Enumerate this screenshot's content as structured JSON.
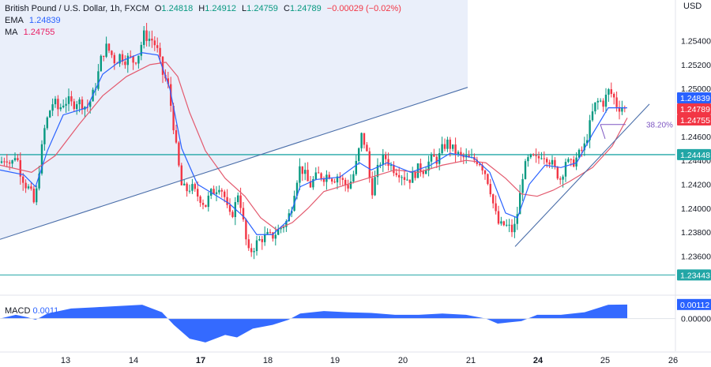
{
  "legend": {
    "symbol": "British Pound / U.S. Dollar, 1h, FXCM",
    "open_label": "O",
    "open": "1.24818",
    "high_label": "H",
    "high": "1.24912",
    "low_label": "L",
    "low": "1.24759",
    "close_label": "C",
    "close": "1.24789",
    "change": "−0.00029 (−0.02%)",
    "ema_label": "EMA",
    "ema_value": "1.24839",
    "ma_label": "MA",
    "ma_value": "1.24755"
  },
  "macd": {
    "label": "MACD",
    "value": "0.0011",
    "axis_current": "0.00112",
    "axis_zero": "0.00000"
  },
  "chart_data": {
    "type": "candlestick",
    "currency": "USD",
    "y_ticks": [
      1.254,
      1.252,
      1.25,
      1.248,
      1.246,
      1.244,
      1.242,
      1.24,
      1.238,
      1.236
    ],
    "y_tick_labels": [
      "1.25400",
      "1.25200",
      "1.25000",
      "1.24800",
      "1.24600",
      "1.24400",
      "1.24200",
      "1.24000",
      "1.23800",
      "1.23600"
    ],
    "ylim": [
      1.233,
      1.2574
    ],
    "x_day_labels": [
      "13",
      "14",
      "17",
      "18",
      "19",
      "20",
      "21",
      "24",
      "25",
      "26"
    ],
    "x_bold_labels": [
      "17",
      "24"
    ],
    "price_labels": [
      {
        "label": "1.24839",
        "value": 1.24839,
        "color": "#2962ff"
      },
      {
        "label": "1.24789",
        "value": 1.24789,
        "color": "#f23645"
      },
      {
        "label": "1.24755",
        "value": 1.24755,
        "color": "#f23645"
      },
      {
        "label": "1.24448",
        "value": 1.24448,
        "color": "#22a6a6"
      },
      {
        "label": "1.23443",
        "value": 1.23443,
        "color": "#22a6a6"
      }
    ],
    "horizontal_levels": [
      1.24448,
      1.23443
    ],
    "fib_label": "38.20%",
    "fib_level": 1.247,
    "path": [
      [
        0,
        1.2438
      ],
      [
        8,
        1.2443
      ],
      [
        14,
        1.2436
      ],
      [
        20,
        1.2446
      ],
      [
        26,
        1.243
      ],
      [
        32,
        1.242
      ],
      [
        38,
        1.2415
      ],
      [
        44,
        1.2402
      ],
      [
        50,
        1.2435
      ],
      [
        56,
        1.2465
      ],
      [
        62,
        1.248
      ],
      [
        68,
        1.249
      ],
      [
        74,
        1.2482
      ],
      [
        80,
        1.2488
      ],
      [
        86,
        1.249
      ],
      [
        92,
        1.2486
      ],
      [
        98,
        1.249
      ],
      [
        104,
        1.2487
      ],
      [
        110,
        1.2484
      ],
      [
        116,
        1.2492
      ],
      [
        122,
        1.2505
      ],
      [
        128,
        1.2525
      ],
      [
        134,
        1.2535
      ],
      [
        140,
        1.253
      ],
      [
        146,
        1.2522
      ],
      [
        152,
        1.2528
      ],
      [
        158,
        1.2524
      ],
      [
        164,
        1.2526
      ],
      [
        170,
        1.2522
      ],
      [
        176,
        1.253
      ],
      [
        182,
        1.2545
      ],
      [
        188,
        1.2542
      ],
      [
        194,
        1.254
      ],
      [
        200,
        1.253
      ],
      [
        206,
        1.2512
      ],
      [
        212,
        1.2505
      ],
      [
        218,
        1.2478
      ],
      [
        224,
        1.2445
      ],
      [
        230,
        1.2418
      ],
      [
        236,
        1.2415
      ],
      [
        242,
        1.2418
      ],
      [
        248,
        1.2412
      ],
      [
        254,
        1.2408
      ],
      [
        260,
        1.2402
      ],
      [
        266,
        1.2412
      ],
      [
        272,
        1.2415
      ],
      [
        278,
        1.242
      ],
      [
        284,
        1.241
      ],
      [
        290,
        1.2392
      ],
      [
        296,
        1.2398
      ],
      [
        302,
        1.2415
      ],
      [
        308,
        1.2388
      ],
      [
        314,
        1.2362
      ],
      [
        320,
        1.2366
      ],
      [
        326,
        1.2372
      ],
      [
        332,
        1.2375
      ],
      [
        338,
        1.2377
      ],
      [
        344,
        1.2376
      ],
      [
        350,
        1.238
      ],
      [
        356,
        1.2384
      ],
      [
        362,
        1.2388
      ],
      [
        368,
        1.2398
      ],
      [
        374,
        1.242
      ],
      [
        380,
        1.2435
      ],
      [
        386,
        1.2428
      ],
      [
        392,
        1.2418
      ],
      [
        398,
        1.2425
      ],
      [
        404,
        1.2428
      ],
      [
        410,
        1.2426
      ],
      [
        416,
        1.2429
      ],
      [
        422,
        1.2424
      ],
      [
        428,
        1.2428
      ],
      [
        434,
        1.2422
      ],
      [
        440,
        1.2418
      ],
      [
        446,
        1.2425
      ],
      [
        452,
        1.244
      ],
      [
        458,
        1.2462
      ],
      [
        464,
        1.2448
      ],
      [
        470,
        1.2412
      ],
      [
        476,
        1.2428
      ],
      [
        482,
        1.244
      ],
      [
        488,
        1.2442
      ],
      [
        494,
        1.2436
      ],
      [
        500,
        1.2432
      ],
      [
        506,
        1.243
      ],
      [
        512,
        1.2426
      ],
      [
        518,
        1.2424
      ],
      [
        524,
        1.2428
      ],
      [
        530,
        1.2434
      ],
      [
        536,
        1.2432
      ],
      [
        542,
        1.2438
      ],
      [
        548,
        1.2442
      ],
      [
        554,
        1.244
      ],
      [
        560,
        1.245
      ],
      [
        566,
        1.2455
      ],
      [
        572,
        1.245
      ],
      [
        578,
        1.2446
      ],
      [
        584,
        1.2442
      ],
      [
        590,
        1.2442
      ],
      [
        596,
        1.244
      ],
      [
        602,
        1.2441
      ],
      [
        608,
        1.2438
      ],
      [
        614,
        1.243
      ],
      [
        620,
        1.2418
      ],
      [
        626,
        1.2398
      ],
      [
        632,
        1.2385
      ],
      [
        638,
        1.2386
      ],
      [
        644,
        1.2384
      ],
      [
        650,
        1.238
      ],
      [
        656,
        1.24
      ],
      [
        662,
        1.243
      ],
      [
        668,
        1.244
      ],
      [
        674,
        1.2442
      ],
      [
        680,
        1.244
      ],
      [
        686,
        1.2446
      ],
      [
        692,
        1.2443
      ],
      [
        698,
        1.2438
      ],
      [
        704,
        1.243
      ],
      [
        710,
        1.2424
      ],
      [
        716,
        1.244
      ],
      [
        722,
        1.2436
      ],
      [
        728,
        1.244
      ],
      [
        734,
        1.2446
      ],
      [
        740,
        1.2452
      ],
      [
        746,
        1.2468
      ],
      [
        752,
        1.2485
      ],
      [
        758,
        1.249
      ],
      [
        764,
        1.2488
      ],
      [
        770,
        1.2498
      ],
      [
        776,
        1.2494
      ],
      [
        782,
        1.2484
      ],
      [
        788,
        1.2485
      ],
      [
        794,
        1.2479
      ]
    ],
    "ema_path": [
      [
        0,
        1.2432
      ],
      [
        30,
        1.2428
      ],
      [
        45,
        1.2418
      ],
      [
        60,
        1.2448
      ],
      [
        80,
        1.2478
      ],
      [
        110,
        1.2484
      ],
      [
        130,
        1.2512
      ],
      [
        150,
        1.2522
      ],
      [
        180,
        1.253
      ],
      [
        200,
        1.2528
      ],
      [
        215,
        1.25
      ],
      [
        230,
        1.245
      ],
      [
        250,
        1.242
      ],
      [
        270,
        1.2412
      ],
      [
        290,
        1.2404
      ],
      [
        310,
        1.2392
      ],
      [
        325,
        1.2378
      ],
      [
        345,
        1.2378
      ],
      [
        365,
        1.239
      ],
      [
        380,
        1.2418
      ],
      [
        400,
        1.2424
      ],
      [
        430,
        1.2426
      ],
      [
        455,
        1.2438
      ],
      [
        470,
        1.2432
      ],
      [
        490,
        1.2438
      ],
      [
        520,
        1.243
      ],
      [
        545,
        1.2436
      ],
      [
        570,
        1.2446
      ],
      [
        600,
        1.2442
      ],
      [
        620,
        1.243
      ],
      [
        640,
        1.2396
      ],
      [
        655,
        1.2392
      ],
      [
        670,
        1.242
      ],
      [
        690,
        1.2436
      ],
      [
        710,
        1.2434
      ],
      [
        730,
        1.2438
      ],
      [
        750,
        1.2462
      ],
      [
        770,
        1.2484
      ],
      [
        794,
        1.24839
      ]
    ],
    "ma_path": [
      [
        0,
        1.2436
      ],
      [
        40,
        1.243
      ],
      [
        70,
        1.2444
      ],
      [
        100,
        1.247
      ],
      [
        130,
        1.2494
      ],
      [
        160,
        1.251
      ],
      [
        190,
        1.252
      ],
      [
        210,
        1.2522
      ],
      [
        225,
        1.251
      ],
      [
        240,
        1.248
      ],
      [
        260,
        1.2448
      ],
      [
        285,
        1.2425
      ],
      [
        310,
        1.241
      ],
      [
        330,
        1.2392
      ],
      [
        350,
        1.2382
      ],
      [
        370,
        1.2388
      ],
      [
        390,
        1.24
      ],
      [
        410,
        1.2414
      ],
      [
        440,
        1.242
      ],
      [
        470,
        1.2426
      ],
      [
        500,
        1.2432
      ],
      [
        530,
        1.243
      ],
      [
        560,
        1.2436
      ],
      [
        590,
        1.244
      ],
      [
        615,
        1.2438
      ],
      [
        640,
        1.2425
      ],
      [
        660,
        1.2412
      ],
      [
        680,
        1.241
      ],
      [
        700,
        1.2415
      ],
      [
        720,
        1.2422
      ],
      [
        750,
        1.2434
      ],
      [
        775,
        1.2452
      ],
      [
        794,
        1.24755
      ]
    ],
    "trendlines": [
      {
        "from": [
          0,
          1.2374
        ],
        "to": [
          592,
          1.2501
        ]
      },
      {
        "from": [
          652,
          1.2368
        ],
        "to": [
          822,
          1.2487
        ]
      }
    ],
    "fib_segment": [
      760,
      792
    ],
    "upper_shaded_region": {
      "x_end": 592,
      "y_top": 1.2574,
      "line_from": [
        0,
        1.2374
      ],
      "line_to": [
        592,
        1.2501
      ]
    },
    "macd_histogram": [
      [
        0,
        0.0
      ],
      [
        20,
        0.0003
      ],
      [
        35,
        0.0001
      ],
      [
        45,
        -0.0001
      ],
      [
        60,
        0.0004
      ],
      [
        90,
        0.0008
      ],
      [
        120,
        0.0009
      ],
      [
        150,
        0.001
      ],
      [
        180,
        0.0011
      ],
      [
        205,
        0.0005
      ],
      [
        220,
        -0.0005
      ],
      [
        240,
        -0.0016
      ],
      [
        260,
        -0.0019
      ],
      [
        285,
        -0.0013
      ],
      [
        300,
        -0.0015
      ],
      [
        320,
        -0.0008
      ],
      [
        345,
        -0.0005
      ],
      [
        365,
        -0.0001
      ],
      [
        380,
        0.0004
      ],
      [
        410,
        0.0006
      ],
      [
        440,
        0.0005
      ],
      [
        470,
        0.00045
      ],
      [
        500,
        0.0003
      ],
      [
        530,
        0.0003
      ],
      [
        560,
        0.0004
      ],
      [
        590,
        0.0003
      ],
      [
        615,
        0.0
      ],
      [
        630,
        -0.0004
      ],
      [
        645,
        -0.0003
      ],
      [
        660,
        -0.0002
      ],
      [
        680,
        0.0003
      ],
      [
        710,
        0.0003
      ],
      [
        740,
        0.0005
      ],
      [
        770,
        0.0011
      ],
      [
        794,
        0.00112
      ]
    ],
    "macd_ylim": [
      -0.0026,
      0.0018
    ]
  }
}
